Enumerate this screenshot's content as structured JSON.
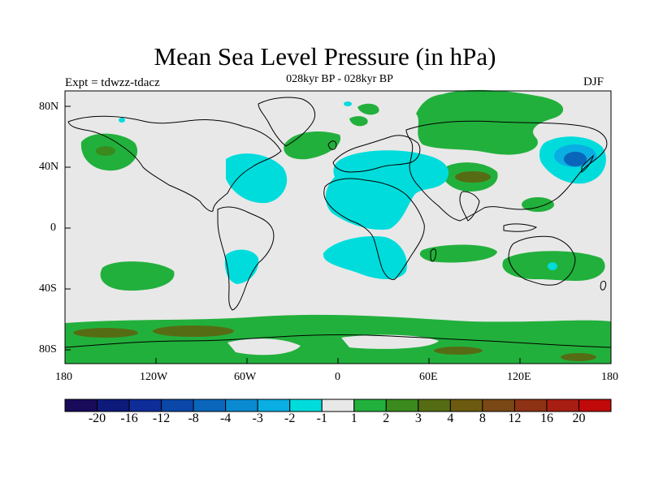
{
  "header": {
    "title": "Mean Sea Level Pressure (in hPa)",
    "subtitle": "028kyr BP - 028kyr BP",
    "experiment": "Expt = tdwzz-tdacz",
    "season": "DJF"
  },
  "axes": {
    "x_ticks": [
      "180",
      "120W",
      "60W",
      "0",
      "60E",
      "120E",
      "180"
    ],
    "y_ticks": [
      "80N",
      "40N",
      "0",
      "40S",
      "80S"
    ]
  },
  "colorbar": {
    "colors": [
      "#1a0a5a",
      "#0d1a7a",
      "#0f2d99",
      "#0a47a8",
      "#0a66bb",
      "#0a8ad0",
      "#0aaee2",
      "#00dcdc",
      "#e8e8e8",
      "#22b03c",
      "#3a8a1e",
      "#566c14",
      "#6c5a10",
      "#7a4814",
      "#8e3214",
      "#a81e12",
      "#c00a0a"
    ],
    "labels": [
      "-20",
      "-16",
      "-12",
      "-8",
      "-4",
      "-3",
      "-2",
      "-1",
      "1",
      "2",
      "3",
      "4",
      "8",
      "12",
      "16",
      "20"
    ]
  },
  "colors": {
    "background": "#e8e8e8",
    "light_positive": "#22b03c",
    "mid_positive": "#3a8a1e",
    "strong_positive": "#6c5a10",
    "light_negative": "#00dcdc",
    "mid_negative": "#0aaee2",
    "strong_negative": "#0a66bb"
  }
}
